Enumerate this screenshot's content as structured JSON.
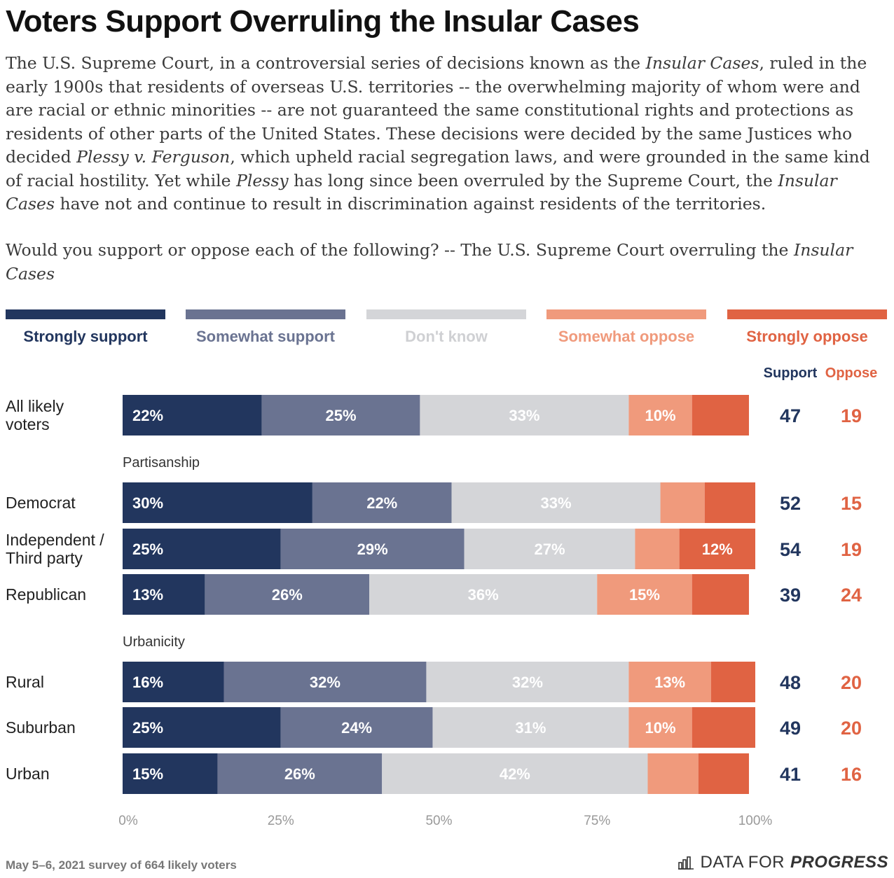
{
  "title": "Voters Support Overruling the Insular Cases",
  "intro_parts": [
    {
      "t": "The U.S. Supreme Court, in a controversial series of decisions known as the ",
      "i": false
    },
    {
      "t": "Insular Cases",
      "i": true
    },
    {
      "t": ", ruled in the early 1900s that residents of overseas U.S. territories -- the overwhelming majority of whom were and are racial or ethnic minorities -- are not guaranteed the same constitutional rights and protections as residents of other parts of the United States. These decisions were decided by the same Justices who decided ",
      "i": false
    },
    {
      "t": "Plessy v. Ferguson",
      "i": true
    },
    {
      "t": ", which upheld racial segregation laws, and were grounded in the same kind of racial hostility. Yet while ",
      "i": false
    },
    {
      "t": "Plessy",
      "i": true
    },
    {
      "t": " has long since been overruled by the Supreme Court, the ",
      "i": false
    },
    {
      "t": "Insular Cases",
      "i": true
    },
    {
      "t": " have not and continue to result in discrimination against residents of the territories.",
      "i": false
    }
  ],
  "question_parts": [
    {
      "t": "Would you support or oppose each of the following? -- The U.S. Supreme Court overruling the ",
      "i": false
    },
    {
      "t": "Insular Cases",
      "i": true
    }
  ],
  "colors": {
    "strongly_support": "#22365e",
    "somewhat_support": "#6a7391",
    "dont_know": "#d4d5d8",
    "somewhat_oppose": "#f09a7c",
    "strongly_oppose": "#e06343",
    "support_total": "#22365e",
    "oppose_total": "#e06343"
  },
  "legend": [
    "Strongly support",
    "Somewhat support",
    "Don't know",
    "Somewhat oppose",
    "Strongly oppose"
  ],
  "chart_data": {
    "type": "bar",
    "orientation": "horizontal",
    "stacked": true,
    "xlim": [
      0,
      100
    ],
    "x_ticks": [
      "0%",
      "25%",
      "50%",
      "75%",
      "100%"
    ],
    "totals_headers": {
      "support": "Support",
      "oppose": "Oppose"
    },
    "series_names": [
      "Strongly support",
      "Somewhat support",
      "Don't know",
      "Somewhat oppose",
      "Strongly oppose"
    ],
    "groups": [
      {
        "label": "",
        "rows": [
          {
            "label": "All likely voters",
            "values": [
              22,
              25,
              33,
              10,
              9
            ],
            "labels": [
              "22%",
              "25%",
              "33%",
              "10%",
              ""
            ],
            "support": "47",
            "oppose": "19"
          }
        ]
      },
      {
        "label": "Partisanship",
        "rows": [
          {
            "label": "Democrat",
            "values": [
              30,
              22,
              33,
              7,
              8
            ],
            "labels": [
              "30%",
              "22%",
              "33%",
              "",
              ""
            ],
            "support": "52",
            "oppose": "15"
          },
          {
            "label": "Independent / Third party",
            "values": [
              25,
              29,
              27,
              7,
              12
            ],
            "labels": [
              "25%",
              "29%",
              "27%",
              "",
              "12%"
            ],
            "support": "54",
            "oppose": "19"
          },
          {
            "label": "Republican",
            "values": [
              13,
              26,
              36,
              15,
              9
            ],
            "labels": [
              "13%",
              "26%",
              "36%",
              "15%",
              ""
            ],
            "support": "39",
            "oppose": "24"
          }
        ]
      },
      {
        "label": "Urbanicity",
        "rows": [
          {
            "label": "Rural",
            "values": [
              16,
              32,
              32,
              13,
              7
            ],
            "labels": [
              "16%",
              "32%",
              "32%",
              "13%",
              ""
            ],
            "support": "48",
            "oppose": "20"
          },
          {
            "label": "Suburban",
            "values": [
              25,
              24,
              31,
              10,
              10
            ],
            "labels": [
              "25%",
              "24%",
              "31%",
              "10%",
              ""
            ],
            "support": "49",
            "oppose": "20"
          },
          {
            "label": "Urban",
            "values": [
              15,
              26,
              42,
              8,
              8
            ],
            "labels": [
              "15%",
              "26%",
              "42%",
              "",
              ""
            ],
            "support": "41",
            "oppose": "16"
          }
        ]
      }
    ]
  },
  "footer": {
    "note": "May 5–6, 2021 survey of 664 likely voters",
    "brand_plain": "DATA FOR",
    "brand_bold": "PROGRESS"
  }
}
